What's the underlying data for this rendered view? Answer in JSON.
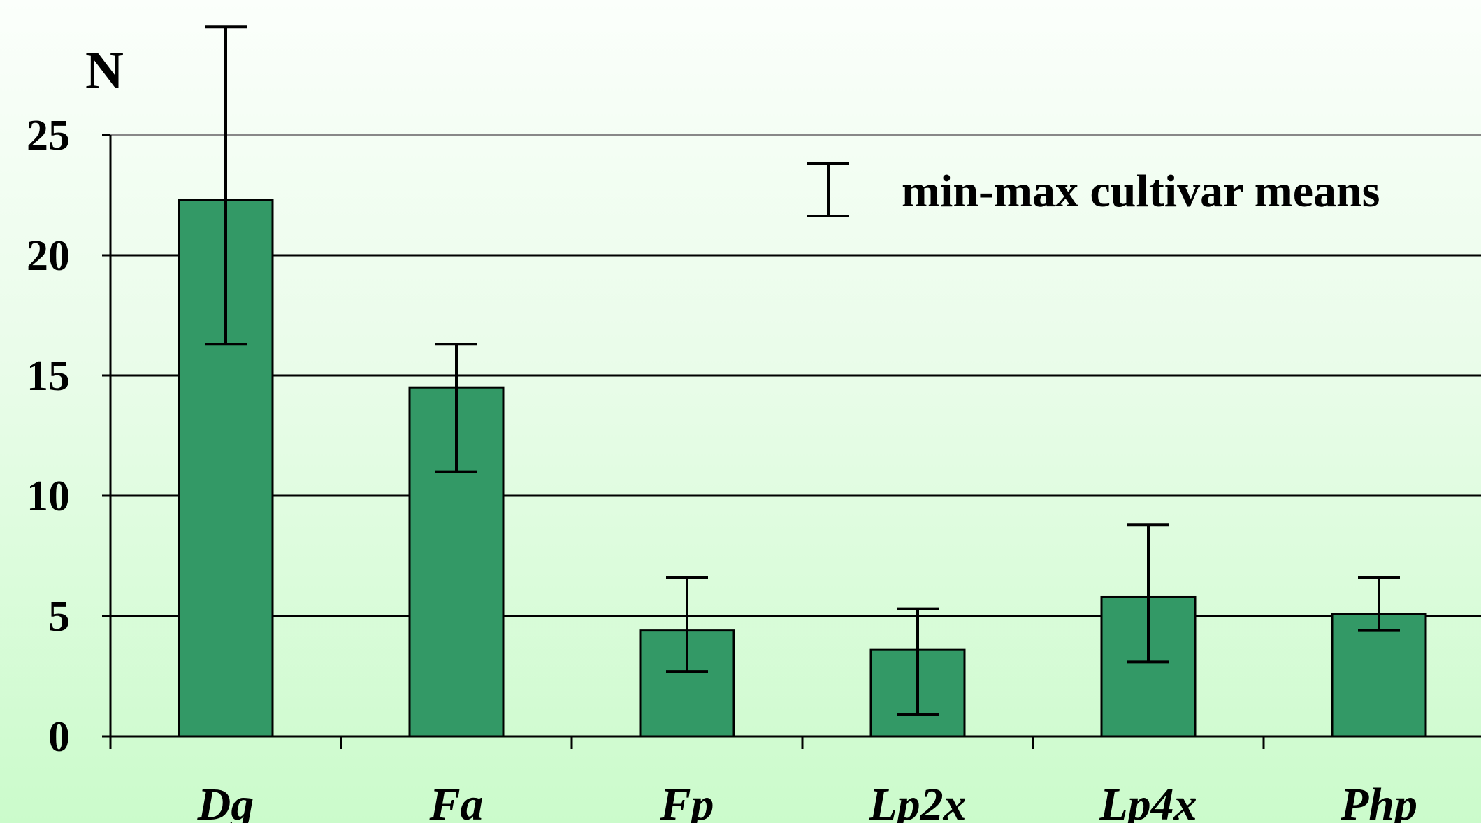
{
  "chart_data": {
    "type": "bar",
    "categories": [
      "Dg",
      "Fa",
      "Fp",
      "Lp2x",
      "Lp4x",
      "Php"
    ],
    "values": [
      22.3,
      14.5,
      4.4,
      3.6,
      5.8,
      5.1
    ],
    "error_bars": {
      "label": "min-max cultivar means",
      "min": [
        16.3,
        11.0,
        2.7,
        0.9,
        3.1,
        4.4
      ],
      "max": [
        29.5,
        16.3,
        6.6,
        5.3,
        8.8,
        6.6
      ]
    },
    "title": "",
    "xlabel": "",
    "ylabel": "N",
    "ylim": [
      0,
      25
    ],
    "yticks": [
      0,
      5,
      10,
      15,
      20,
      25
    ],
    "grid": true,
    "legend_position": "top-right",
    "colors": {
      "bar": "#339966",
      "bar_edge": "#000000",
      "gridline": "#000000",
      "axis": "#000000"
    }
  }
}
